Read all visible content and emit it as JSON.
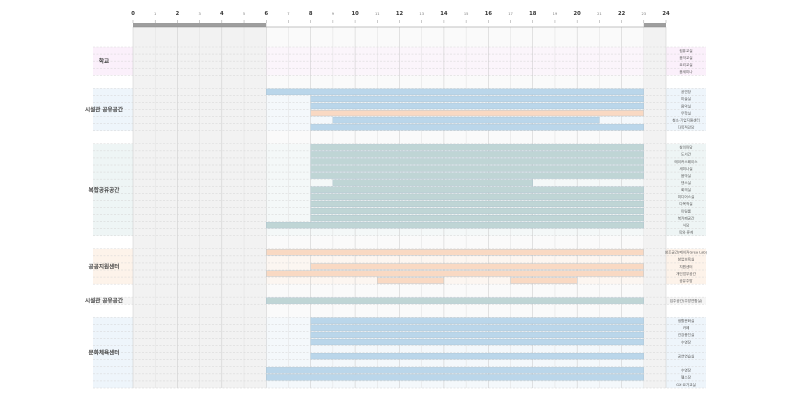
{
  "chart_data": {
    "type": "gantt",
    "x_axis": {
      "ticks": [
        "0",
        "1",
        "2",
        "3",
        "4",
        "5",
        "6",
        "7",
        "8",
        "9",
        "10",
        "11",
        "12",
        "13",
        "14",
        "15",
        "16",
        "17",
        "18",
        "19",
        "20",
        "21",
        "22",
        "23",
        "24"
      ],
      "major_ticks": [
        0,
        2,
        4,
        6,
        8,
        10,
        12,
        14,
        16,
        18,
        20,
        22,
        24
      ],
      "range": [
        0,
        24
      ],
      "closed_hours": [
        [
          0,
          6
        ],
        [
          23,
          24
        ]
      ]
    },
    "colors": {
      "blue": "#bad6ea",
      "teal": "#bfd5d5",
      "orange": "#f9d9c3",
      "dark_band": "#9e9e9e",
      "row_line": "#d4d4d4"
    },
    "groups": [
      {
        "name": "학교",
        "tint": "#fbf0fb",
        "rows": [
          {
            "label": "컴퓨교실",
            "bars": []
          },
          {
            "label": "음악교실",
            "bars": []
          },
          {
            "label": "요리교실",
            "bars": []
          },
          {
            "label": "음세미나",
            "bars": []
          }
        ]
      },
      {
        "name": "시설관 공유공간",
        "tint": "#eef5fb",
        "rows": [
          {
            "label": "공연장",
            "bars": [
              {
                "start": 6,
                "end": 23,
                "color": "blue"
              }
            ]
          },
          {
            "label": "미술실",
            "bars": [
              {
                "start": 8,
                "end": 23,
                "color": "blue"
              }
            ]
          },
          {
            "label": "음악실",
            "bars": [
              {
                "start": 8,
                "end": 23,
                "color": "blue"
              }
            ]
          },
          {
            "label": "무학실",
            "bars": [
              {
                "start": 8,
                "end": 23,
                "color": "orange"
              }
            ]
          },
          {
            "label": "청소·기업지원센터",
            "bars": [
              {
                "start": 9,
                "end": 21,
                "color": "blue"
              }
            ]
          },
          {
            "label": "다목적강당",
            "bars": [
              {
                "start": 8,
                "end": 23,
                "color": "blue"
              }
            ]
          }
        ]
      },
      {
        "name": "복합공유공간",
        "tint": "#eef5f5",
        "rows": [
          {
            "label": "창의마당",
            "bars": [
              {
                "start": 8,
                "end": 23,
                "color": "teal"
              }
            ]
          },
          {
            "label": "도서관",
            "bars": [
              {
                "start": 8,
                "end": 23,
                "color": "teal"
              }
            ]
          },
          {
            "label": "메이커스페이스",
            "bars": [
              {
                "start": 8,
                "end": 23,
                "color": "teal"
              }
            ]
          },
          {
            "label": "세미나실",
            "bars": [
              {
                "start": 8,
                "end": 23,
                "color": "teal"
              }
            ]
          },
          {
            "label": "음악실",
            "bars": [
              {
                "start": 8,
                "end": 23,
                "color": "teal"
              }
            ]
          },
          {
            "label": "댄스실",
            "bars": [
              {
                "start": 9,
                "end": 18,
                "color": "teal"
              }
            ]
          },
          {
            "label": "회의실",
            "bars": [
              {
                "start": 8,
                "end": 23,
                "color": "teal"
              }
            ]
          },
          {
            "label": "미디어스실",
            "bars": [
              {
                "start": 8,
                "end": 23,
                "color": "teal"
              }
            ]
          },
          {
            "label": "다목적실",
            "bars": [
              {
                "start": 8,
                "end": 23,
                "color": "teal"
              }
            ]
          },
          {
            "label": "미팅룸",
            "bars": [
              {
                "start": 8,
                "end": 23,
                "color": "teal"
              }
            ]
          },
          {
            "label": "북카페공간",
            "bars": [
              {
                "start": 8,
                "end": 23,
                "color": "teal"
              }
            ]
          },
          {
            "label": "식당",
            "bars": [
              {
                "start": 6,
                "end": 23,
                "color": "teal"
              }
            ]
          },
          {
            "label": "옥외·휴게",
            "bars": []
          }
        ]
      },
      {
        "name": "공공지원센터",
        "tint": "#fdf3ea",
        "rows": [
          {
            "label": "창조공간(메이커Grea Lab)",
            "bars": [
              {
                "start": 6,
                "end": 23,
                "color": "orange"
              }
            ]
          },
          {
            "label": "창업보육실",
            "bars": []
          },
          {
            "label": "지원센터",
            "bars": [
              {
                "start": 8,
                "end": 23,
                "color": "orange"
              }
            ]
          },
          {
            "label": "개인업무공간",
            "bars": [
              {
                "start": 6,
                "end": 23,
                "color": "orange"
              }
            ]
          },
          {
            "label": "공유주방",
            "bars": [
              {
                "start": 11,
                "end": 14,
                "color": "orange"
              },
              {
                "start": 17,
                "end": 20,
                "color": "orange"
              }
            ]
          }
        ]
      },
      {
        "name": "시설관 공유공간",
        "tint": "#f5f5f5",
        "rows": [
          {
            "label": "입주공간(주방연합실)",
            "bars": [
              {
                "start": 6,
                "end": 23,
                "color": "teal"
              }
            ]
          }
        ]
      },
      {
        "name": "문화체육센터",
        "tint": "#eef5fb",
        "rows": [
          {
            "label": "생활문화실",
            "bars": [
              {
                "start": 8,
                "end": 23,
                "color": "blue"
              }
            ]
          },
          {
            "label": "카페",
            "bars": [
              {
                "start": 8,
                "end": 23,
                "color": "blue"
              }
            ]
          },
          {
            "label": "건강증진실",
            "bars": [
              {
                "start": 8,
                "end": 23,
                "color": "blue"
              }
            ]
          },
          {
            "label": "수영장",
            "bars": [
              {
                "start": 8,
                "end": 23,
                "color": "blue"
              }
            ]
          },
          {
            "label": "",
            "bars": []
          },
          {
            "label": "공연연습실",
            "bars": [
              {
                "start": 8,
                "end": 23,
                "color": "blue"
              }
            ]
          },
          {
            "label": "",
            "bars": []
          },
          {
            "label": "수영장",
            "bars": [
              {
                "start": 6,
                "end": 23,
                "color": "blue"
              }
            ]
          },
          {
            "label": "헬스장",
            "bars": [
              {
                "start": 6,
                "end": 23,
                "color": "blue"
              }
            ]
          },
          {
            "label": "GX·요가교실",
            "bars": []
          }
        ]
      }
    ]
  }
}
